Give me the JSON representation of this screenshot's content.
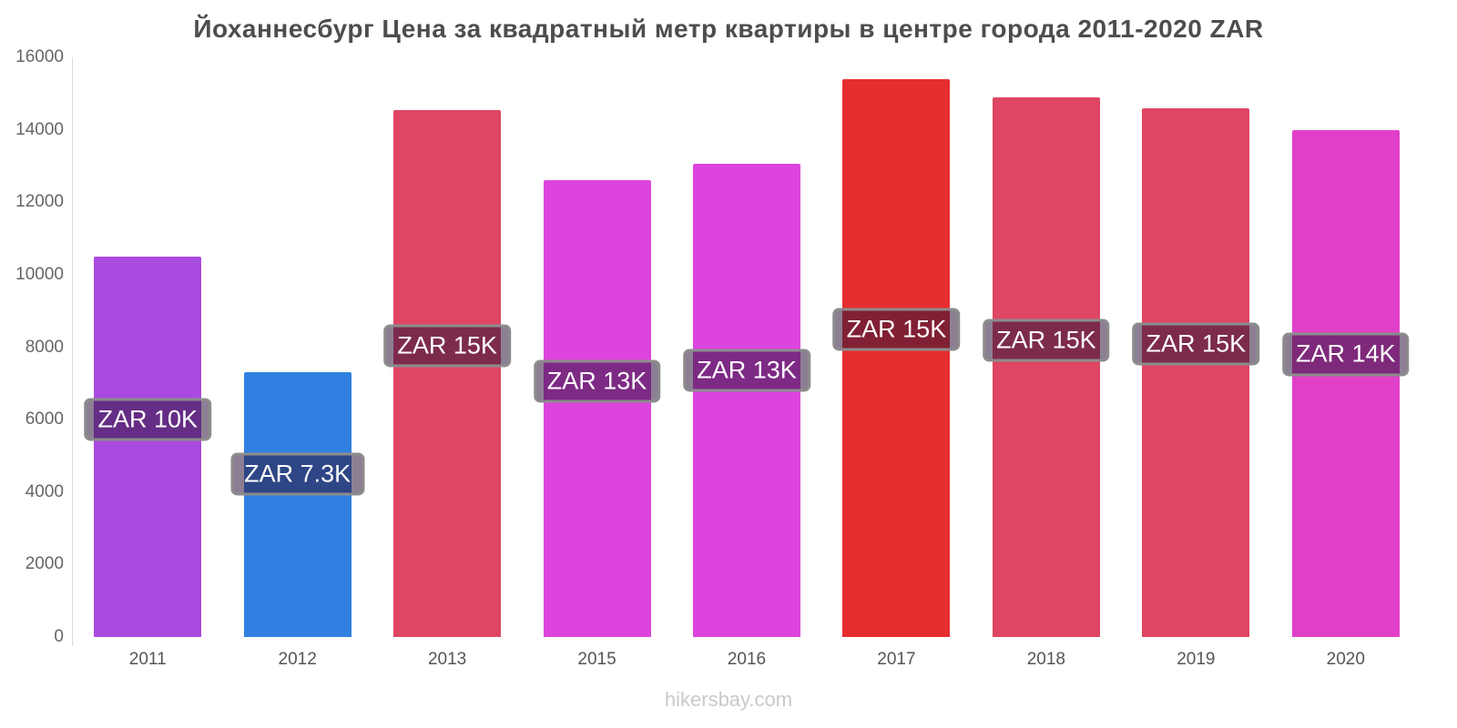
{
  "title": "Йоханнесбург Цена за квадратный метр квартиры в центре города 2011-2020 ZAR",
  "watermark": "hikersbay.com",
  "chart_data": {
    "type": "bar",
    "title": "Йоханнесбург Цена за квадратный метр квартиры в центре города 2011-2020 ZAR",
    "xlabel": "",
    "ylabel": "",
    "ylim": [
      0,
      16000
    ],
    "yticks": [
      0,
      2000,
      4000,
      6000,
      8000,
      10000,
      12000,
      14000,
      16000
    ],
    "grid": false,
    "legend": "none",
    "currency": "ZAR",
    "categories": [
      "2011",
      "2012",
      "2013",
      "2015",
      "2016",
      "2017",
      "2018",
      "2019",
      "2020"
    ],
    "bars": [
      {
        "year": "2011",
        "value": 10500,
        "label": "ZAR 10K",
        "color": "#a94be0",
        "label_center_value": 6000
      },
      {
        "year": "2012",
        "value": 7300,
        "label": "ZAR 7.3K",
        "color": "#2f80e0",
        "label_center_value": 4500
      },
      {
        "year": "2013",
        "value": 14550,
        "label": "ZAR 15K",
        "color": "#de4663",
        "label_center_value": 8050
      },
      {
        "year": "2015",
        "value": 12600,
        "label": "ZAR 13K",
        "color": "#dd44dd",
        "label_center_value": 7050
      },
      {
        "year": "2016",
        "value": 13050,
        "label": "ZAR 13K",
        "color": "#dd44dd",
        "label_center_value": 7350
      },
      {
        "year": "2017",
        "value": 15400,
        "label": "ZAR 15K",
        "color": "#e62e2e",
        "label_center_value": 8500
      },
      {
        "year": "2018",
        "value": 14900,
        "label": "ZAR 15K",
        "color": "#de4663",
        "label_center_value": 8200
      },
      {
        "year": "2019",
        "value": 14600,
        "label": "ZAR 15K",
        "color": "#de4663",
        "label_center_value": 8100
      },
      {
        "year": "2020",
        "value": 14000,
        "label": "ZAR 14K",
        "color": "#e040c8",
        "label_center_value": 7800
      }
    ]
  }
}
